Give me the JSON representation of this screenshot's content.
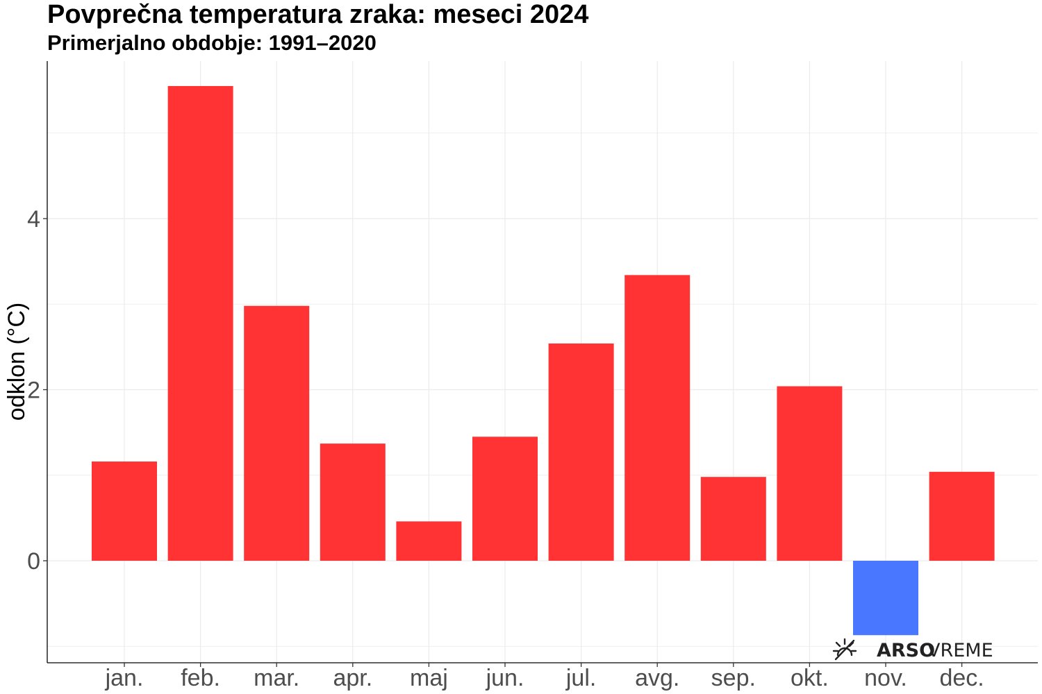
{
  "chart_data": {
    "type": "bar",
    "title": "Povprečna temperatura zraka: meseci 2024",
    "subtitle": "Primerjalno obdobje: 1991–2020",
    "xlabel": "",
    "ylabel": "odklon (°C)",
    "categories": [
      "jan.",
      "feb.",
      "mar.",
      "apr.",
      "maj",
      "jun.",
      "jul.",
      "avg.",
      "sep.",
      "okt.",
      "nov.",
      "dec."
    ],
    "values": [
      1.16,
      5.55,
      2.98,
      1.37,
      0.46,
      1.45,
      2.54,
      3.34,
      0.98,
      2.04,
      -0.87,
      1.04
    ],
    "ylim": [
      -1.2,
      5.85
    ],
    "yticks": [
      0,
      2,
      4
    ],
    "grid": true,
    "legend": "none",
    "colors": {
      "positive": "#ff3333",
      "negative": "#4a77ff",
      "grid": "#ebebeb",
      "axis": "#000000"
    }
  },
  "logo": {
    "bold": "ARSO",
    "regular": "VREME",
    "icon": "sun-icon"
  }
}
